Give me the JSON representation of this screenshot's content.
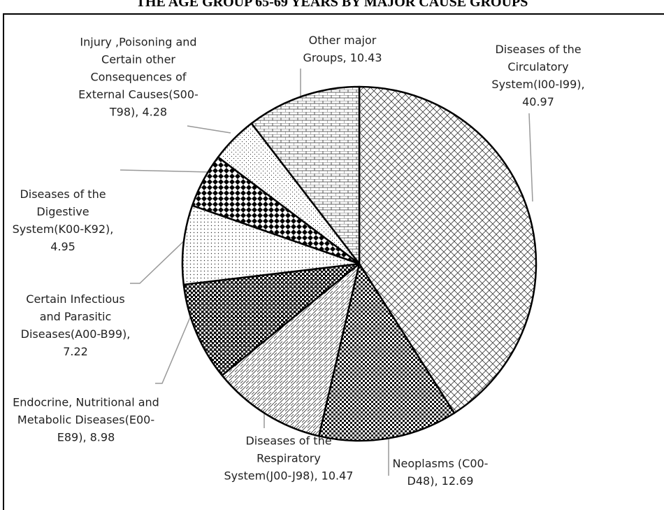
{
  "chart_data": {
    "type": "pie",
    "title": "THE AGE GROUP 65-69 YEARS BY MAJOR CAUSE GROUPS",
    "values": [
      40.97,
      12.69,
      10.47,
      8.98,
      7.22,
      4.95,
      4.28,
      10.43
    ],
    "value_labels": [
      "Diseases of the Circulatory System(I00-I99), 40.97",
      "Neoplasms (C00-D48), 12.69",
      "Diseases of the Respiratory System(J00-J98), 10.47",
      "Endocrine, Nutritional and Metabolic Diseases(E00-E89), 8.98",
      "Certain Infectious and Parasitic Diseases(A00-B99), 7.22",
      "Diseases of the Digestive System(K00-K92), 4.95",
      "Injury ,Poisoning and Certain other Consequences of External Causes(S00-T98), 4.28",
      "Other major Groups, 10.43"
    ]
  }
}
